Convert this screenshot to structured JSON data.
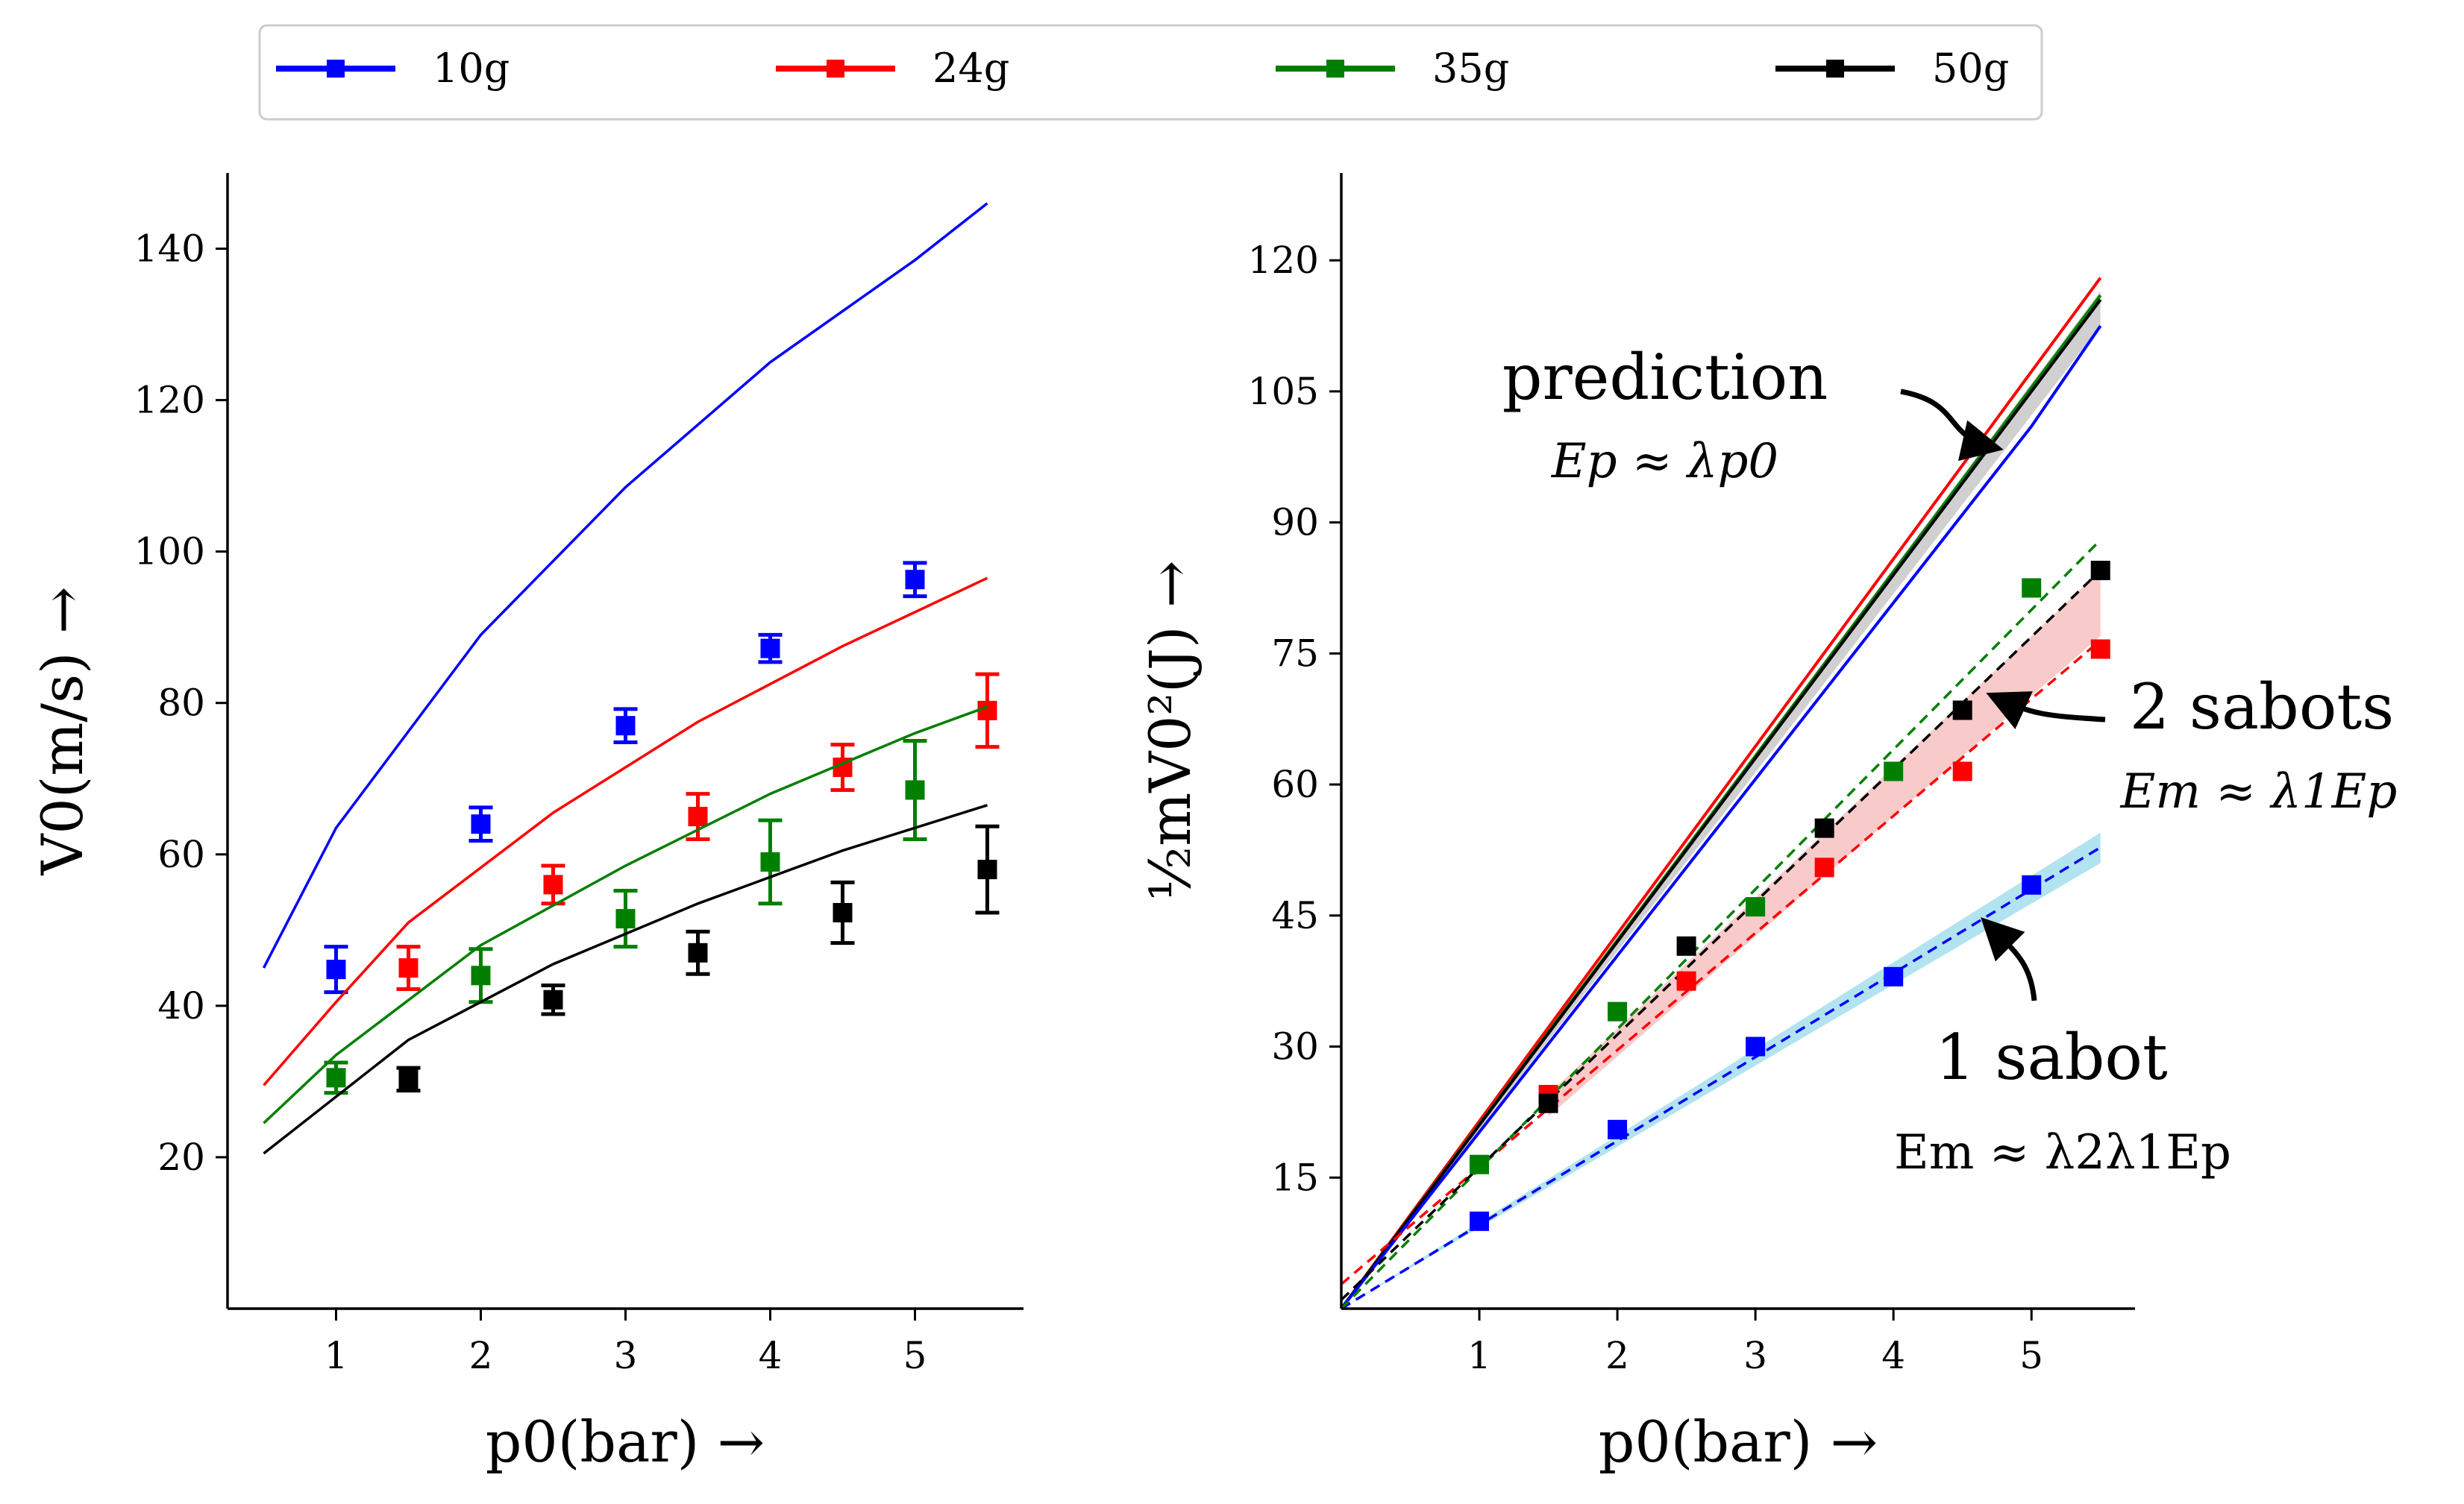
{
  "legend": {
    "entries": [
      {
        "label": "10g",
        "color": "#0000ff"
      },
      {
        "label": "24g",
        "color": "#ff0000"
      },
      {
        "label": "35g",
        "color": "#007f00"
      },
      {
        "label": "50g",
        "color": "#000000"
      }
    ]
  },
  "chart_data": [
    {
      "type": "line",
      "title": "",
      "xlabel": "p0(bar) →",
      "ylabel": "V0(m/s) →",
      "xlim": [
        0.25,
        5.75
      ],
      "ylim": [
        0,
        150
      ],
      "xticks": [
        1,
        2,
        3,
        4,
        5
      ],
      "yticks": [
        20,
        40,
        60,
        80,
        100,
        120,
        140
      ],
      "grid": false,
      "series": [
        {
          "name": "10g",
          "color": "#0000ff",
          "model_x": [
            0.5,
            1,
            2,
            3,
            4,
            5,
            5.5
          ],
          "model_y": [
            45,
            63.5,
            89,
            108.5,
            125,
            138.5,
            146
          ],
          "points": [
            {
              "x": 1,
              "y": 44.8,
              "err": 3
            },
            {
              "x": 2,
              "y": 64,
              "err": 2.2
            },
            {
              "x": 3,
              "y": 77,
              "err": 2.2
            },
            {
              "x": 4,
              "y": 87.2,
              "err": 1.8
            },
            {
              "x": 5,
              "y": 96.3,
              "err": 2.2
            }
          ]
        },
        {
          "name": "24g",
          "color": "#ff0000",
          "model_x": [
            0.5,
            1,
            1.5,
            2.5,
            3.5,
            4.5,
            5.5
          ],
          "model_y": [
            29.5,
            40.5,
            51,
            65.5,
            77.5,
            87.5,
            96.5
          ],
          "points": [
            {
              "x": 1.5,
              "y": 45,
              "err": 2.8
            },
            {
              "x": 2.5,
              "y": 56,
              "err": 2.5
            },
            {
              "x": 3.5,
              "y": 65,
              "err": 3
            },
            {
              "x": 4.5,
              "y": 71.5,
              "err": 3
            },
            {
              "x": 5.5,
              "y": 79,
              "err": 4.8
            }
          ]
        },
        {
          "name": "35g",
          "color": "#007f00",
          "model_x": [
            0.5,
            1,
            2,
            3,
            4,
            5,
            5.5
          ],
          "model_y": [
            24.5,
            33.5,
            48,
            58.5,
            68,
            76,
            79.5
          ],
          "points": [
            {
              "x": 1,
              "y": 30.5,
              "err": 2
            },
            {
              "x": 2,
              "y": 44,
              "err": 3.5
            },
            {
              "x": 3,
              "y": 51.5,
              "err": 3.7
            },
            {
              "x": 4,
              "y": 59,
              "err": 5.5
            },
            {
              "x": 5,
              "y": 68.5,
              "err": 6.5
            }
          ]
        },
        {
          "name": "50g",
          "color": "#000000",
          "model_x": [
            0.5,
            1.5,
            2.5,
            3.5,
            4.5,
            5.5
          ],
          "model_y": [
            20.5,
            35.5,
            45.5,
            53.5,
            60.5,
            66.5
          ],
          "points": [
            {
              "x": 1.5,
              "y": 30.3,
              "err": 1.5
            },
            {
              "x": 2.5,
              "y": 40.8,
              "err": 1.9
            },
            {
              "x": 3.5,
              "y": 47,
              "err": 2.8
            },
            {
              "x": 4.5,
              "y": 52.3,
              "err": 4
            },
            {
              "x": 5.5,
              "y": 58,
              "err": 5.7
            }
          ]
        }
      ]
    },
    {
      "type": "line",
      "title": "",
      "xlabel": "p0(bar) →",
      "ylabel": "½mV0²(J) →",
      "xlim": [
        0,
        5.75
      ],
      "ylim": [
        0,
        130
      ],
      "xticks": [
        1,
        2,
        3,
        4,
        5
      ],
      "yticks": [
        15,
        30,
        45,
        60,
        75,
        90,
        105,
        120
      ],
      "grid": false,
      "prediction_lines": [
        {
          "name": "24g",
          "color": "#ff0000",
          "x": [
            0,
            5.5
          ],
          "y": [
            0,
            118
          ]
        },
        {
          "name": "35g",
          "color": "#007f00",
          "x": [
            0,
            5.5
          ],
          "y": [
            0,
            116
          ]
        },
        {
          "name": "50g",
          "color": "#000000",
          "x": [
            0,
            5.5
          ],
          "y": [
            0,
            115.5
          ]
        },
        {
          "name": "10g",
          "color": "#0000ff",
          "x": [
            0,
            5,
            5.5
          ],
          "y": [
            0,
            101,
            112.5
          ]
        }
      ],
      "prediction_band": {
        "x": [
          0,
          5.5
        ],
        "upper": [
          0,
          116.5
        ],
        "lower": [
          0,
          112.5
        ],
        "color": "#b0b0b0"
      },
      "two_sabot_band": {
        "x": [
          1.5,
          5.5
        ],
        "upper": [
          24.5,
          84.5
        ],
        "lower": [
          22,
          77
        ],
        "color": "#f4a6a6"
      },
      "one_sabot_band": {
        "x": [
          0,
          5.5
        ],
        "upper": [
          0,
          54.5
        ],
        "lower": [
          0,
          51
        ],
        "color": "#7fd0e6"
      },
      "measured": [
        {
          "name": "10g",
          "color": "#0000ff",
          "x": [
            1,
            2,
            3,
            4,
            5
          ],
          "y": [
            10,
            20.5,
            30,
            38,
            48.5
          ],
          "fit": {
            "x": [
              0,
              5.5
            ],
            "y": [
              0,
              52.8
            ]
          }
        },
        {
          "name": "24g",
          "color": "#ff0000",
          "x": [
            1.5,
            2.5,
            3.5,
            4.5,
            5.5
          ],
          "y": [
            24.5,
            37.5,
            50.5,
            61.5,
            75.5
          ],
          "fit": {
            "x": [
              0,
              5.5
            ],
            "y": [
              2.8,
              76.5
            ]
          }
        },
        {
          "name": "35g",
          "color": "#007f00",
          "x": [
            1,
            2,
            3,
            4,
            5
          ],
          "y": [
            16.5,
            34,
            46,
            61.5,
            82.5
          ],
          "fit": {
            "x": [
              0,
              5.5
            ],
            "y": [
              0,
              88
            ]
          }
        },
        {
          "name": "50g",
          "color": "#000000",
          "x": [
            1.5,
            2.5,
            3.5,
            4.5,
            5.5
          ],
          "y": [
            23.5,
            41.5,
            55,
            68.5,
            84.5
          ],
          "fit": {
            "x": [
              0,
              5.5
            ],
            "y": [
              1,
              84.5
            ]
          }
        }
      ],
      "annotations": {
        "prediction": "prediction",
        "prediction_eq": "Ep ≈ λp0",
        "two_sabots": "2 sabots",
        "two_sabots_eq": "Em ≈ λ1Ep",
        "one_sabot": "1 sabot",
        "one_sabot_eq": "Em ≈ λ2λ1Ep"
      }
    }
  ]
}
